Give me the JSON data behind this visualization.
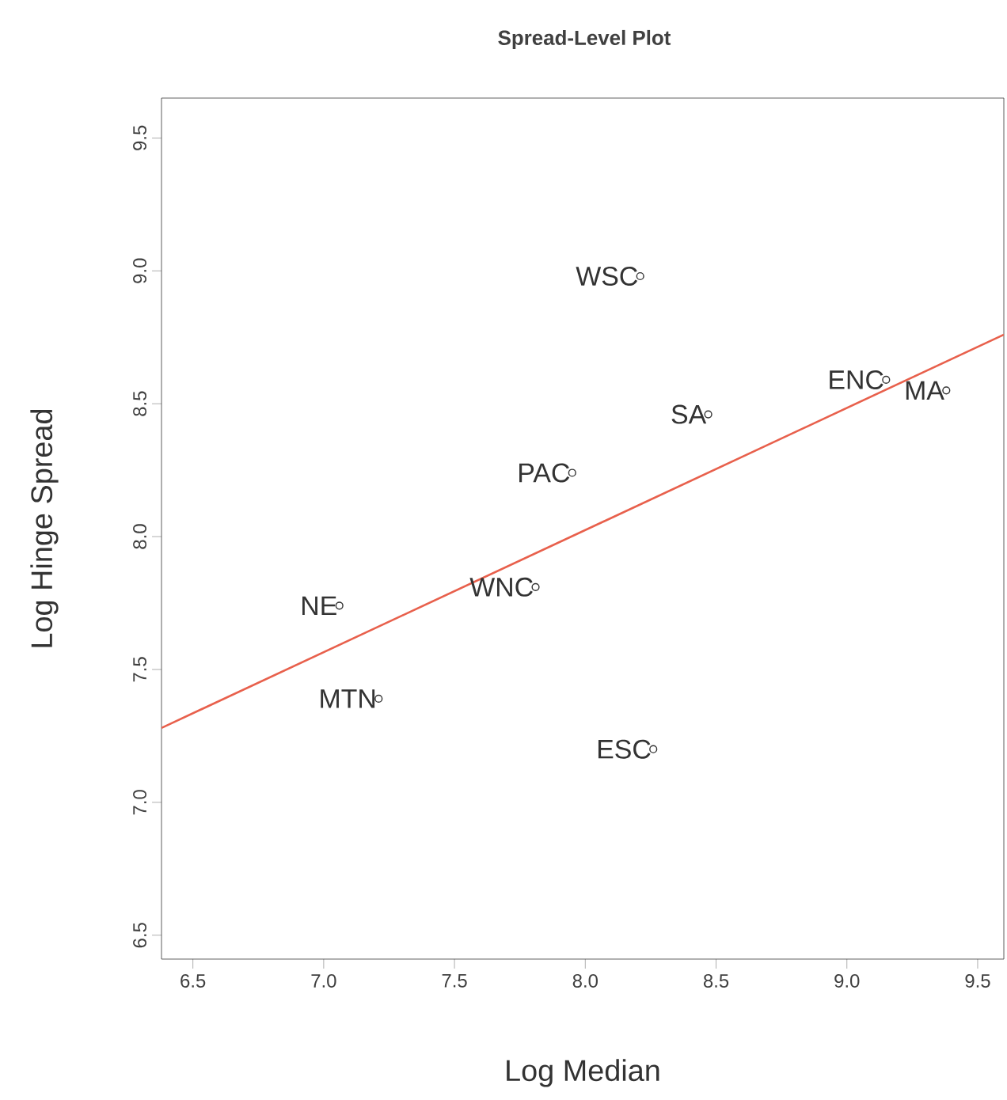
{
  "chart_data": {
    "type": "scatter",
    "title": "Spread-Level Plot",
    "xlabel": "Log Median",
    "ylabel": "Log Hinge Spread",
    "xlim": [
      6.38,
      9.6
    ],
    "ylim": [
      6.41,
      9.65
    ],
    "xticks": [
      {
        "value": 6.5,
        "label": "6.5"
      },
      {
        "value": 7,
        "label": "7.0"
      },
      {
        "value": 7.5,
        "label": "7.5"
      },
      {
        "value": 8,
        "label": "8.0"
      },
      {
        "value": 8.5,
        "label": "8.5"
      },
      {
        "value": 9,
        "label": "9.0"
      },
      {
        "value": 9.5,
        "label": "9.5"
      }
    ],
    "yticks": [
      {
        "value": 6.5,
        "label": "6.5"
      },
      {
        "value": 7,
        "label": "7.0"
      },
      {
        "value": 7.5,
        "label": "7.5"
      },
      {
        "value": 8,
        "label": "8.0"
      },
      {
        "value": 8.5,
        "label": "8.5"
      },
      {
        "value": 9,
        "label": "9.0"
      },
      {
        "value": 9.5,
        "label": "9.5"
      }
    ],
    "marker": "circle",
    "series": [
      {
        "color": "#333333",
        "x": [
          8.21,
          8.47,
          7.95,
          9.15,
          9.38,
          7.06,
          7.81,
          7.21,
          8.26
        ],
        "values": [
          8.98,
          8.46,
          8.24,
          8.59,
          8.55,
          7.74,
          7.81,
          7.39,
          7.2
        ]
      },
      {
        "type": "line",
        "marker": "none",
        "color": "#e8604c",
        "x": [
          6.38,
          9.6
        ],
        "values": [
          7.28,
          8.76
        ]
      }
    ],
    "annotations": [
      {
        "text": "WSC",
        "x": 8.21,
        "y": 8.98
      },
      {
        "text": "SA",
        "x": 8.47,
        "y": 8.46
      },
      {
        "text": "PAC",
        "x": 7.95,
        "y": 8.24
      },
      {
        "text": "ENC",
        "x": 9.15,
        "y": 8.59
      },
      {
        "text": "MA",
        "x": 9.38,
        "y": 8.55
      },
      {
        "text": "NE",
        "x": 7.06,
        "y": 7.74
      },
      {
        "text": "WNC",
        "x": 7.81,
        "y": 7.81
      },
      {
        "text": "MTN",
        "x": 7.21,
        "y": 7.39
      },
      {
        "text": "ESC",
        "x": 8.26,
        "y": 7.2
      }
    ]
  }
}
